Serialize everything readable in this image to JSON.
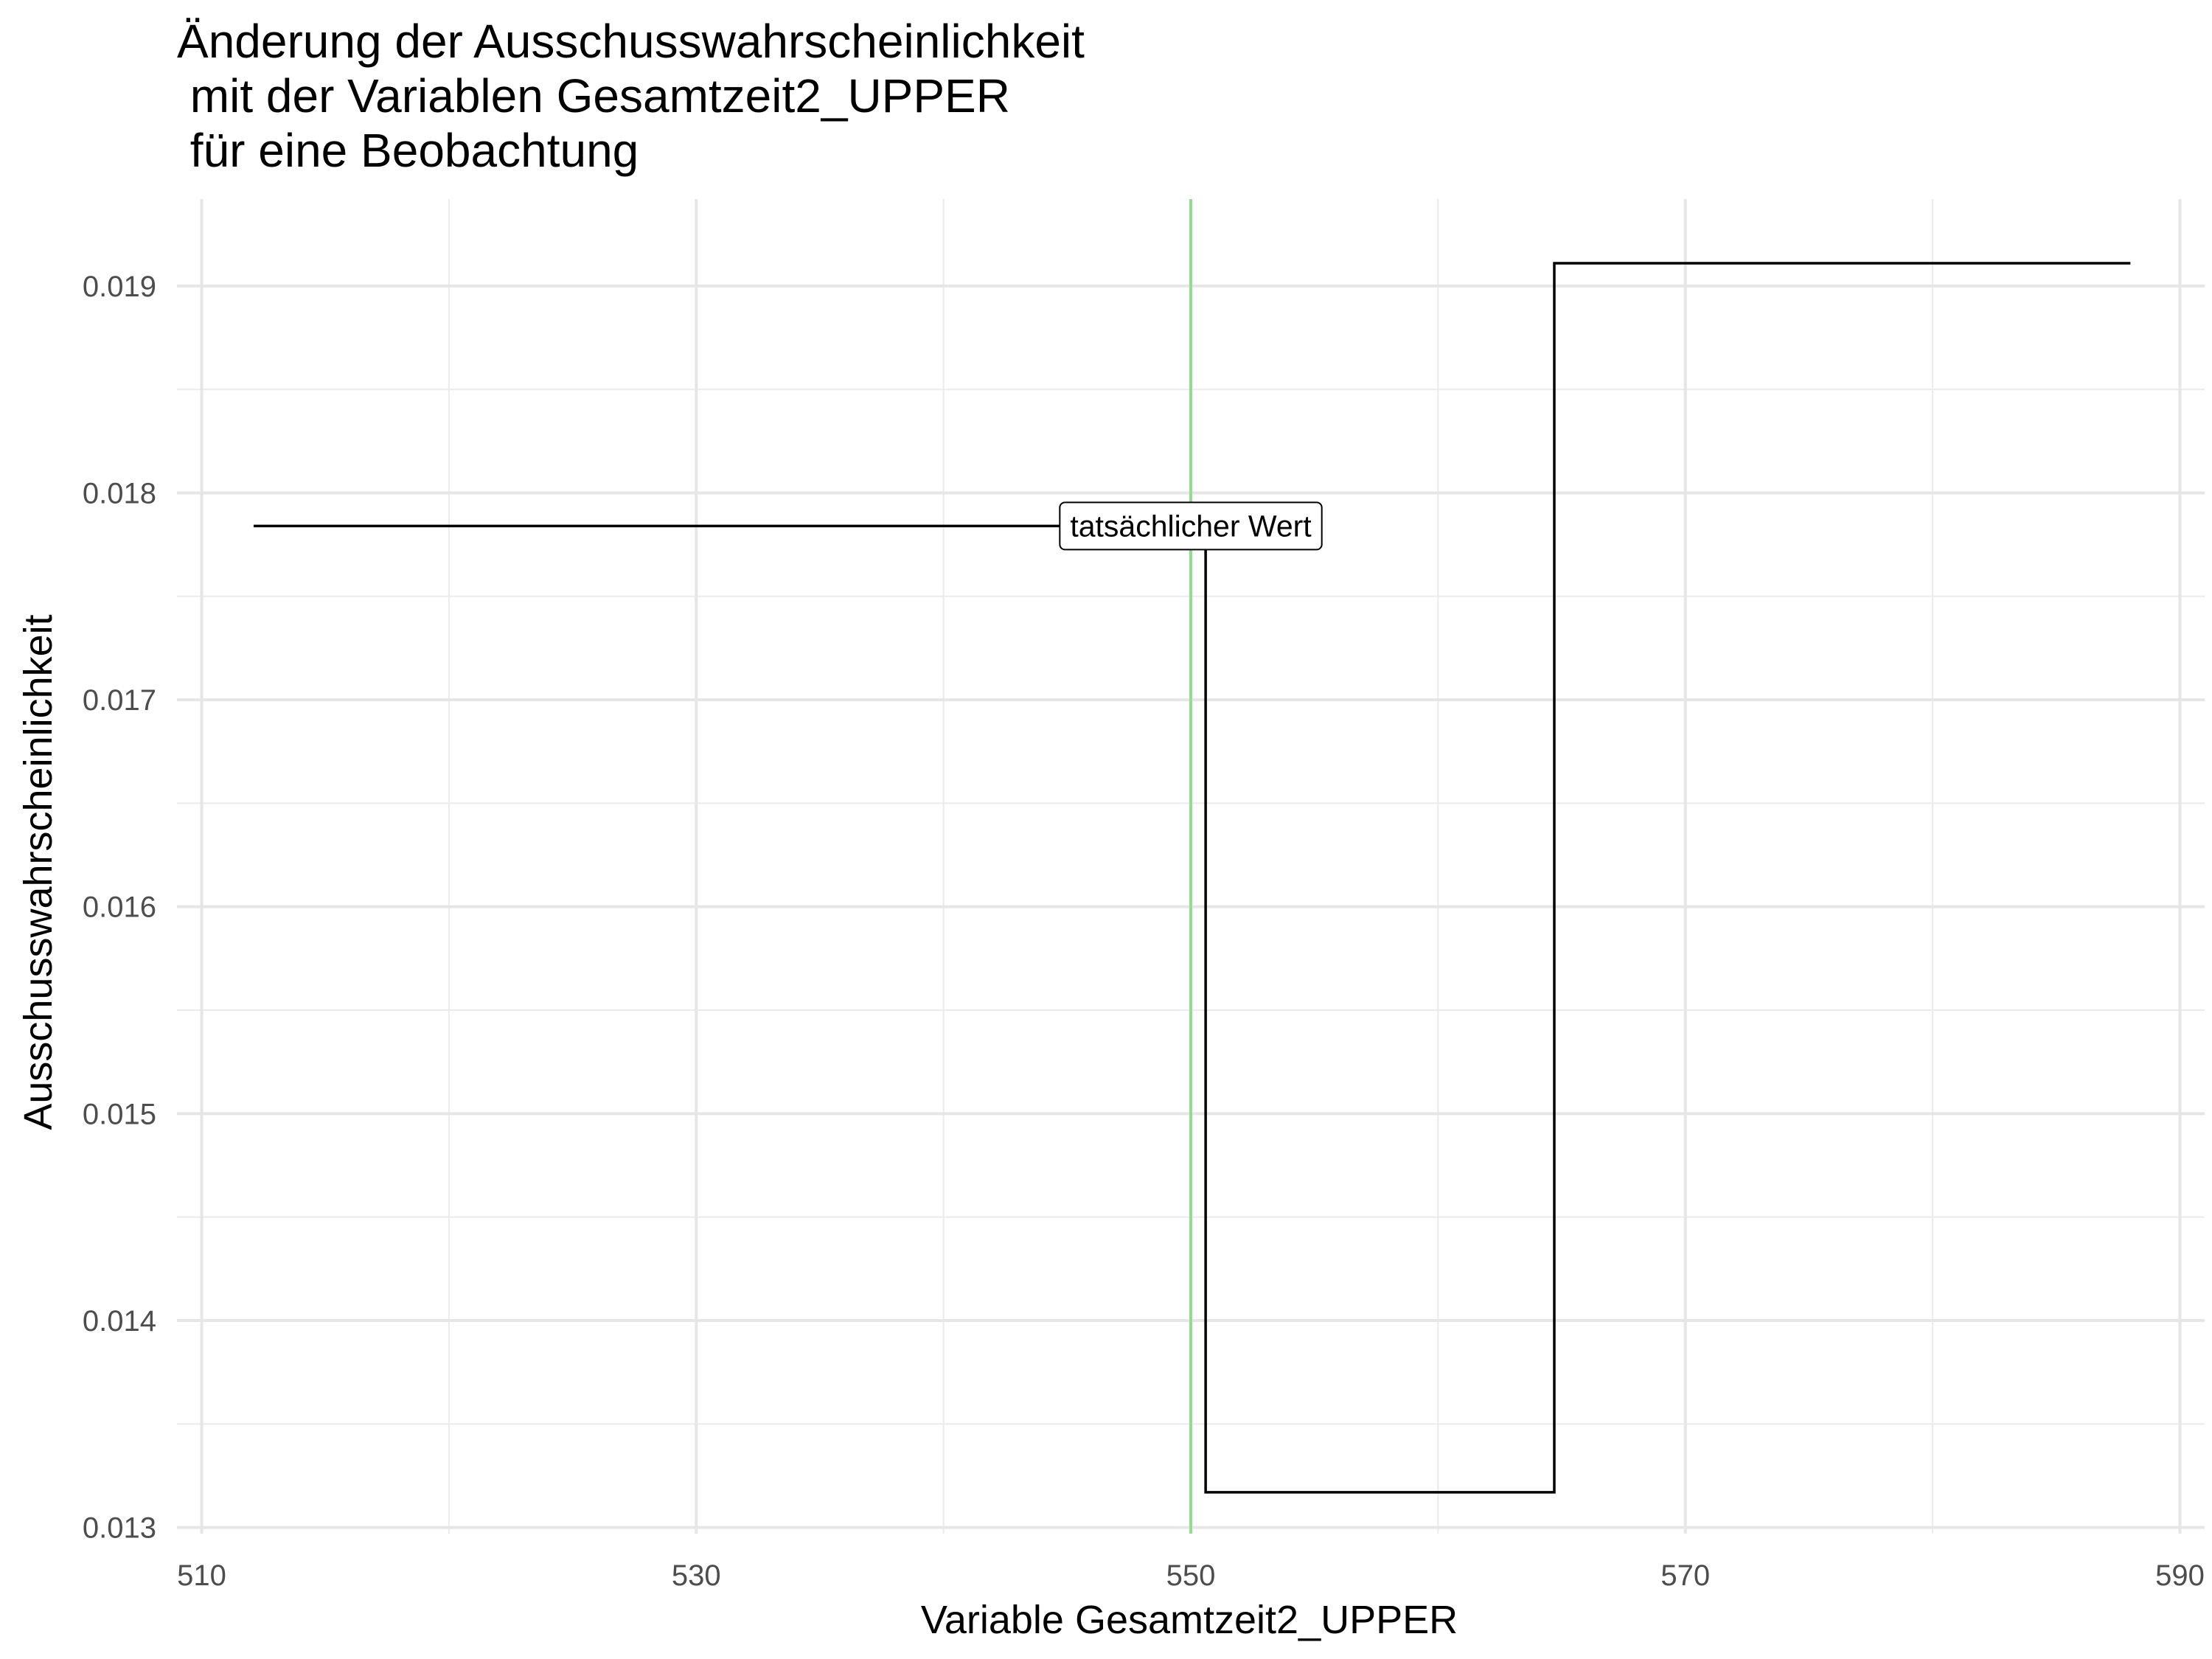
{
  "chart_data": {
    "type": "line",
    "title_lines": [
      "Änderung der Ausschusswahrscheinlichkeit",
      " mit der Variablen Gesamtzeit2_UPPER",
      " für eine Beobachtung"
    ],
    "xlabel": "Variable Gesamtzeit2_UPPER",
    "ylabel": "Ausschusswahrscheinlichkeit",
    "xlim": [
      509,
      591
    ],
    "ylim": [
      0.01297,
      0.01942
    ],
    "x_ticks": [
      510,
      530,
      550,
      570,
      590
    ],
    "x_tick_labels": [
      "510",
      "530",
      "550",
      "570",
      "590"
    ],
    "y_ticks": [
      0.013,
      0.014,
      0.015,
      0.016,
      0.017,
      0.018,
      0.019
    ],
    "y_tick_labels": [
      "0.013",
      "0.014",
      "0.015",
      "0.016",
      "0.017",
      "0.018",
      "0.019"
    ],
    "grid": true,
    "series": [
      {
        "step": "hv",
        "color": "#000000",
        "x": [
          512.1,
          550.6,
          564.7,
          588.0
        ],
        "y": [
          0.01784,
          0.01317,
          0.01911,
          0.01911
        ]
      }
    ],
    "reference_line": {
      "x": 550,
      "color": "#8fdf8f"
    },
    "annotation": {
      "text": "tatsächlicher Wert",
      "x": 550,
      "y": 0.01784
    }
  }
}
